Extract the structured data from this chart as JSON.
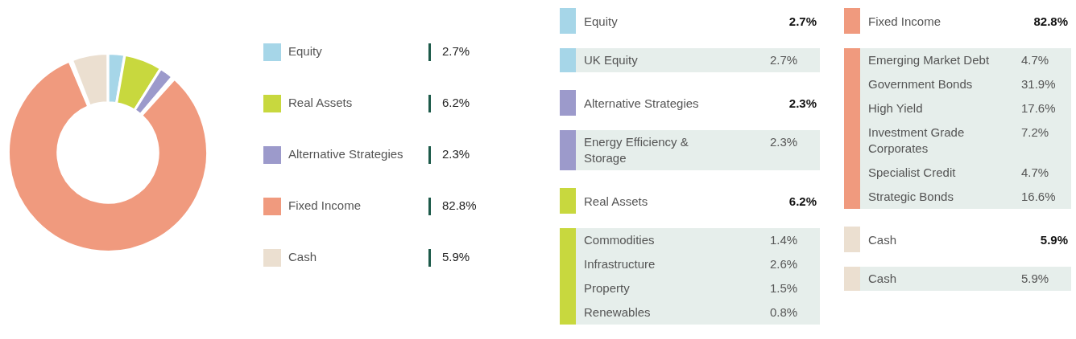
{
  "chart_data": [
    {
      "type": "donut",
      "categories": [
        "Equity",
        "Real Assets",
        "Alternative Strategies",
        "Fixed Income",
        "Cash"
      ],
      "values": [
        2.7,
        6.2,
        2.3,
        82.8,
        5.9
      ],
      "colors": [
        "#a6d6e8",
        "#c8d83e",
        "#9c9acb",
        "#f09a7e",
        "#ebdfd0"
      ],
      "value_labels": [
        "2.7%",
        "6.2%",
        "2.3%",
        "82.8%",
        "5.9%"
      ],
      "legend": "right"
    },
    {
      "type": "other",
      "title": "Equity",
      "totals": [
        "2.7%"
      ],
      "categories": [
        "UK Equity"
      ],
      "value_labels": [
        "2.7%"
      ],
      "color": "#a6d6e8"
    },
    {
      "type": "other",
      "title": "Alternative Strategies",
      "totals": [
        "2.3%"
      ],
      "categories": [
        "Energy Efficiency & Storage"
      ],
      "value_labels": [
        "2.3%"
      ],
      "color": "#9c9acb"
    },
    {
      "type": "other",
      "title": "Real Assets",
      "totals": [
        "6.2%"
      ],
      "categories": [
        "Commodities",
        "Infrastructure",
        "Property",
        "Renewables"
      ],
      "value_labels": [
        "1.4%",
        "2.6%",
        "1.5%",
        "0.8%"
      ],
      "color": "#c8d83e"
    },
    {
      "type": "other",
      "title": "Fixed Income",
      "totals": [
        "82.8%"
      ],
      "categories": [
        "Emerging Market Debt",
        "Government Bonds",
        "High Yield",
        "Investment Grade Corporates",
        "Specialist Credit",
        "Strategic Bonds"
      ],
      "value_labels": [
        "4.7%",
        "31.9%",
        "17.6%",
        "7.2%",
        "4.7%",
        "16.6%"
      ],
      "color": "#f09a7e"
    },
    {
      "type": "other",
      "title": "Cash",
      "totals": [
        "5.9%"
      ],
      "categories": [
        "Cash"
      ],
      "value_labels": [
        "5.9%"
      ],
      "color": "#ebdfd0"
    }
  ]
}
